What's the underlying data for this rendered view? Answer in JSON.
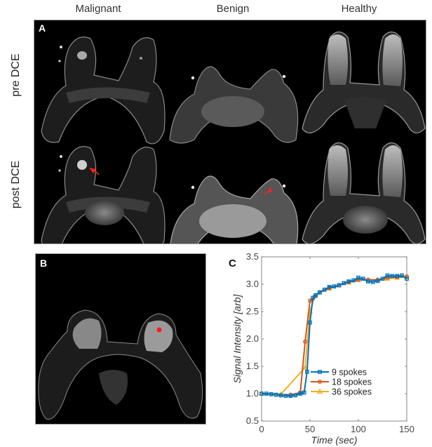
{
  "figure": {
    "column_titles": [
      "Malignant",
      "Benign",
      "Healthy"
    ],
    "row_labels": [
      "pre DCE",
      "post DCE"
    ],
    "panel_labels": {
      "a": "A",
      "b": "B",
      "c": "C"
    },
    "panel_a": {
      "description": "Grid of axial breast MRI slices: rows pre DCE / post DCE; columns Malignant, Benign, Healthy",
      "annotations": [
        {
          "type": "arrow",
          "color": "#ff2020",
          "location": "post DCE / Malignant, pointing to enhancing lesion in right breast"
        },
        {
          "type": "arrow",
          "color": "#ff2020",
          "location": "post DCE / Benign, pointing to lesion in left breast"
        }
      ]
    },
    "panel_b": {
      "description": "Axial breast MRI with red dot marking ROI in left breast",
      "marker_color": "#ff1a1a"
    }
  },
  "chart_data": {
    "type": "line",
    "title": "",
    "xlabel": "Time (sec)",
    "ylabel": "Signal Intensity [arb]",
    "xlim": [
      0,
      150
    ],
    "ylim": [
      0.5,
      3.5
    ],
    "xticks": [
      0,
      50,
      100,
      150
    ],
    "yticks": [
      0.5,
      1.0,
      1.5,
      2.0,
      2.5,
      3.0,
      3.5
    ],
    "ytick_labels": [
      "0.5",
      "1.0",
      "1.5",
      "2.0",
      "2.5",
      "3.0",
      "3.5"
    ],
    "grid": false,
    "legend_position": "lower right",
    "series": [
      {
        "name": "9 spokes",
        "color": "#0072BD",
        "marker": "square",
        "x": [
          0,
          5,
          10,
          15,
          20,
          25,
          30,
          35,
          40,
          44,
          47,
          50,
          53,
          56,
          60,
          65,
          70,
          75,
          80,
          85,
          90,
          95,
          100,
          105,
          110,
          115,
          120,
          125,
          130,
          135,
          140,
          145,
          150
        ],
        "y": [
          1.0,
          1.0,
          0.99,
          0.98,
          0.97,
          0.96,
          0.96,
          0.97,
          1.0,
          1.02,
          1.4,
          2.3,
          2.75,
          2.8,
          2.85,
          2.9,
          2.95,
          2.96,
          2.98,
          3.02,
          3.05,
          3.07,
          3.12,
          3.1,
          3.05,
          3.04,
          3.06,
          3.1,
          3.16,
          3.15,
          3.15,
          3.16,
          3.1
        ]
      },
      {
        "name": "18 spokes",
        "color": "#D95319",
        "marker": "circle",
        "x": [
          0,
          10,
          20,
          30,
          40,
          45,
          50,
          55,
          60,
          70,
          80,
          90,
          100,
          110,
          120,
          130,
          140,
          150
        ],
        "y": [
          1.0,
          0.99,
          0.97,
          0.98,
          1.02,
          1.95,
          2.7,
          2.78,
          2.85,
          2.93,
          2.98,
          3.04,
          3.08,
          3.08,
          3.08,
          3.12,
          3.13,
          3.14
        ]
      },
      {
        "name": "36 spokes",
        "color": "#EDB120",
        "marker": "triangle",
        "x": [
          0,
          20,
          45,
          50,
          55,
          60,
          70,
          80,
          90,
          100,
          110,
          120,
          130,
          140,
          150
        ],
        "y": [
          1.0,
          0.99,
          1.48,
          2.5,
          2.78,
          2.85,
          2.92,
          2.98,
          3.03,
          3.08,
          3.08,
          3.08,
          3.1,
          3.12,
          3.13
        ]
      }
    ]
  }
}
